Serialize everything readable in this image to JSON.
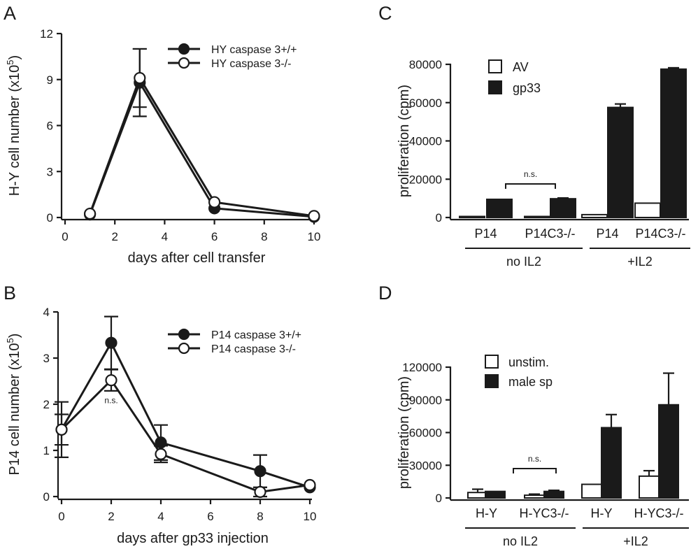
{
  "chart_data": [
    {
      "panel": "A",
      "type": "line",
      "xlabel": "days after cell transfer",
      "ylabel": "H-Y cell number (x10",
      "ylabel_sup": "5",
      "ylabel_close": ")",
      "xlim": [
        0,
        10
      ],
      "ylim": [
        0,
        12
      ],
      "xticks": [
        0,
        2,
        4,
        6,
        8,
        10
      ],
      "yticks": [
        0,
        3,
        6,
        9,
        12
      ],
      "legend_position": "top-right",
      "series": [
        {
          "name": "HY caspase 3+/+",
          "marker": "filled",
          "x": [
            1,
            3,
            6,
            10
          ],
          "y": [
            0.2,
            8.8,
            0.6,
            0.05
          ],
          "err": [
            0,
            2.2,
            0,
            0
          ]
        },
        {
          "name": "HY caspase 3-/-",
          "marker": "open",
          "x": [
            1,
            3,
            6,
            10
          ],
          "y": [
            0.25,
            9.1,
            1.0,
            0.1
          ],
          "err": [
            0,
            1.9,
            0,
            0
          ]
        }
      ]
    },
    {
      "panel": "B",
      "type": "line",
      "xlabel": "days after gp33 injection",
      "ylabel": "P14 cell number (x10",
      "ylabel_sup": "5",
      "ylabel_close": ")",
      "xlim": [
        0,
        10
      ],
      "ylim": [
        0,
        4
      ],
      "xticks": [
        0,
        2,
        4,
        6,
        8,
        10
      ],
      "yticks": [
        0,
        1,
        2,
        3,
        4
      ],
      "legend_position": "top-right",
      "annotation": {
        "text": "n.s.",
        "x": 2,
        "y": 2.1
      },
      "series": [
        {
          "name": "P14 caspase 3+/+",
          "marker": "filled",
          "x": [
            0,
            2,
            4,
            8,
            10
          ],
          "y": [
            1.45,
            3.33,
            1.17,
            0.55,
            0.2
          ],
          "err": [
            0.6,
            0.57,
            0.38,
            0.35,
            0
          ]
        },
        {
          "name": "P14 caspase 3-/-",
          "marker": "open",
          "x": [
            0,
            2,
            4,
            8,
            10
          ],
          "y": [
            1.45,
            2.52,
            0.92,
            0.1,
            0.25
          ],
          "err": [
            0.33,
            0.23,
            0.18,
            0.1,
            0
          ]
        }
      ]
    },
    {
      "panel": "C",
      "type": "bar",
      "ylabel": "proliferation (cpm)",
      "ylim": [
        0,
        80000
      ],
      "yticks": [
        0,
        20000,
        40000,
        60000,
        80000
      ],
      "legend_position": "top-left",
      "categories": [
        "P14",
        "P14C3-/-",
        "P14",
        "P14C3-/-"
      ],
      "groups": [
        {
          "label": "no IL2",
          "from": 0,
          "to": 1
        },
        {
          "label": "+IL2",
          "from": 2,
          "to": 3
        }
      ],
      "annotation": {
        "text": "n.s.",
        "from": 0,
        "to": 1
      },
      "series": [
        {
          "name": "AV",
          "fill": "#ffffff",
          "values": [
            400,
            400,
            1500,
            7500
          ],
          "err": [
            0,
            0,
            0,
            0
          ]
        },
        {
          "name": "gp33",
          "fill": "#1a1a1a",
          "values": [
            9500,
            9800,
            57500,
            77500
          ],
          "err": [
            0,
            400,
            1800,
            700
          ]
        }
      ]
    },
    {
      "panel": "D",
      "type": "bar",
      "ylabel": "proliferation (cpm)",
      "ylim": [
        0,
        120000
      ],
      "yticks": [
        0,
        30000,
        60000,
        90000,
        120000
      ],
      "legend_position": "top-left",
      "categories": [
        "H-Y",
        "H-YC3-/-",
        "H-Y",
        "H-YC3-/-"
      ],
      "groups": [
        {
          "label": "no IL2",
          "from": 0,
          "to": 1
        },
        {
          "label": "+IL2",
          "from": 2,
          "to": 3
        }
      ],
      "annotation": {
        "text": "n.s.",
        "from": 0,
        "to": 1
      },
      "series": [
        {
          "name": "unstim.",
          "fill": "#ffffff",
          "values": [
            5000,
            2500,
            12500,
            20000
          ],
          "err": [
            3000,
            1000,
            0,
            5000
          ]
        },
        {
          "name": "male sp",
          "fill": "#1a1a1a",
          "values": [
            6000,
            6000,
            64500,
            85500
          ],
          "err": [
            0,
            1000,
            12000,
            29000
          ]
        }
      ]
    }
  ]
}
